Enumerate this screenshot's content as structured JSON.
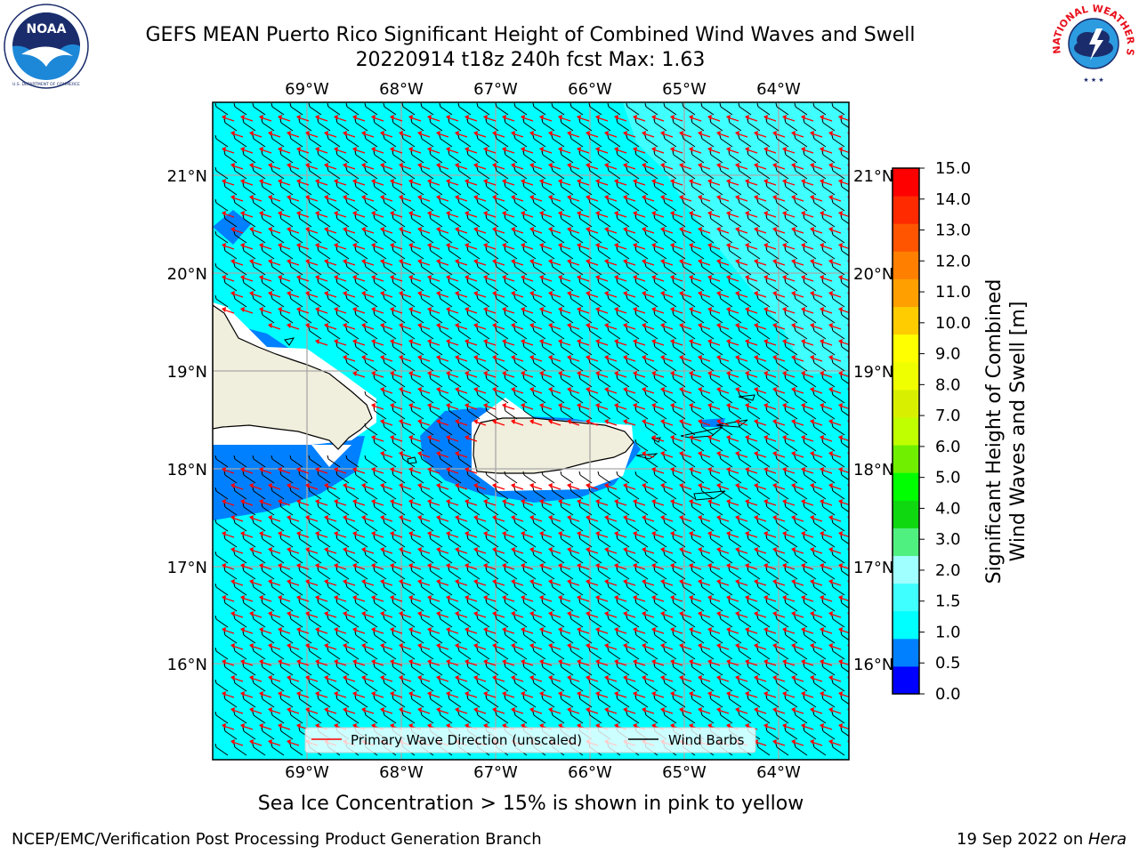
{
  "header": {
    "title_line1": "GEFS MEAN Puerto Rico Significant Height of Combined Wind Waves and Swell",
    "title_line2": "20220914 t18z 240h fcst   Max: 1.63"
  },
  "logos": {
    "left": {
      "text": "NOAA",
      "ring_text": "NATIONAL OCEANIC AND ATMOSPHERIC ADMINISTRATION · U.S. DEPARTMENT OF COMMERCE",
      "icon": "noaa-logo"
    },
    "right": {
      "ring_text": "NATIONAL WEATHER SERVICE",
      "icon": "nws-logo"
    }
  },
  "map": {
    "lon_labels": [
      "69°W",
      "68°W",
      "67°W",
      "66°W",
      "65°W",
      "64°W"
    ],
    "lat_labels": [
      "21°N",
      "20°N",
      "19°N",
      "18°N",
      "17°N",
      "16°N"
    ],
    "colors": {
      "ocean": "#00ffff",
      "ocean_light": "#40ffff",
      "shallow": "#0080ff",
      "land": "#f0eedc",
      "arrow": "#ff0000",
      "barb": "#000000",
      "grid": "#a8a8a8"
    },
    "legend": {
      "primary_wave": "Primary Wave Direction (unscaled)",
      "wind_barbs": "Wind Barbs"
    }
  },
  "colorbar": {
    "label_line1": "Significant Height of Combined",
    "label_line2": "Wind Waves and Swell [m]",
    "ticks": [
      "15.0",
      "14.0",
      "13.0",
      "12.0",
      "11.0",
      "10.0",
      "9.0",
      "8.0",
      "7.0",
      "6.0",
      "5.0",
      "4.0",
      "3.0",
      "2.0",
      "1.5",
      "1.0",
      "0.5",
      "0.0"
    ],
    "colors": [
      "#0000ff",
      "#0080ff",
      "#00ffff",
      "#40ffff",
      "#a0ffff",
      "#50f080",
      "#10d810",
      "#00ff00",
      "#70f000",
      "#c0ff00",
      "#d8f000",
      "#f0ff00",
      "#ffff00",
      "#ffcc00",
      "#ffa000",
      "#ff8000",
      "#ff5500",
      "#ff2a00",
      "#ff0000"
    ]
  },
  "footer": {
    "note": "Sea Ice Concentration > 15% is shown in pink to yellow",
    "left_credit": "NCEP/EMC/Verification Post Processing Product Generation Branch",
    "right_credit_prefix": "19 Sep 2022 on ",
    "right_credit_host": "Hera"
  }
}
